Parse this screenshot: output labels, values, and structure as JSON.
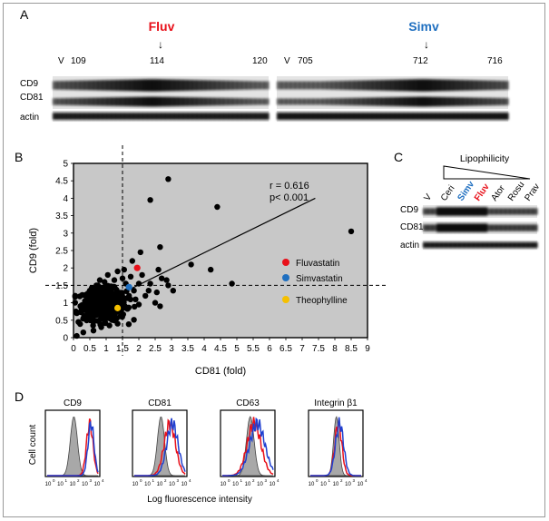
{
  "colors": {
    "red": "#e8101a",
    "blue": "#1f6fc0",
    "yellow": "#f5c000",
    "plot_bg": "#c8c8c8"
  },
  "panelA": {
    "letter": "A",
    "left": {
      "drug": "Fluv",
      "arrow": "↓",
      "lanes": {
        "v": "V",
        "a": "109",
        "b": "114",
        "c": "120"
      }
    },
    "right": {
      "drug": "Simv",
      "arrow": "↓",
      "lanes": {
        "v": "V",
        "a": "705",
        "b": "712",
        "c": "716"
      }
    },
    "rows": [
      "CD9",
      "CD81",
      "actin"
    ]
  },
  "panelB": {
    "letter": "B"
  },
  "panelC": {
    "letter": "C",
    "title": "Lipophilicity",
    "lanes": [
      "V",
      "Ceri",
      "Simv",
      "Fluv",
      "Ator",
      "Rosu",
      "Prav"
    ],
    "rows": [
      "CD9",
      "CD81",
      "actin"
    ]
  },
  "panelD": {
    "letter": "D",
    "titles": [
      "CD9",
      "CD81",
      "CD63",
      "Integrin β1"
    ],
    "ylabel": "Cell count",
    "xlabel": "Log  fluorescence intensity",
    "ticks": [
      "10",
      "10",
      "10",
      "10",
      "10"
    ],
    "exps": [
      "0",
      "1",
      "2",
      "3",
      "4"
    ]
  },
  "chart_data": {
    "type": "scatter",
    "xlabel": "CD81 (fold)",
    "ylabel": "CD9 (fold)",
    "xlim": [
      0,
      9
    ],
    "ylim": [
      0,
      5
    ],
    "xticks": [
      "0",
      "0.5",
      "1",
      "1.5",
      "2",
      "2.5",
      "3",
      "3.5",
      "4",
      "4.5",
      "5",
      "5.5",
      "6",
      "6.5",
      "7",
      "7.5",
      "8",
      "8.5",
      "9"
    ],
    "yticks": [
      "0",
      "0.5",
      "1",
      "1.5",
      "2",
      "2.5",
      "3",
      "3.5",
      "4",
      "4.5",
      "5"
    ],
    "annotation": {
      "r": "r = 0.616",
      "p": "p< 0.001"
    },
    "threshold_x": 1.5,
    "threshold_y": 1.5,
    "regression": {
      "x": [
        0.4,
        7.4
      ],
      "y": [
        0.78,
        4.0
      ]
    },
    "legend": [
      {
        "label": "Fluvastatin",
        "color": "#e8101a"
      },
      {
        "label": "Simvastatin",
        "color": "#1f6fc0"
      },
      {
        "label": "Theophylline",
        "color": "#f5c000"
      }
    ],
    "highlighted": [
      {
        "name": "Fluvastatin",
        "x": 1.95,
        "y": 2.0
      },
      {
        "name": "Simvastatin",
        "x": 1.7,
        "y": 1.45
      },
      {
        "name": "Theophylline",
        "x": 1.35,
        "y": 0.85
      }
    ],
    "outliers": [
      [
        8.5,
        3.05
      ],
      [
        4.4,
        3.75
      ],
      [
        2.9,
        4.55
      ],
      [
        2.35,
        3.95
      ],
      [
        4.85,
        1.55
      ],
      [
        3.6,
        2.1
      ],
      [
        4.2,
        1.95
      ],
      [
        2.65,
        2.6
      ],
      [
        2.05,
        2.45
      ],
      [
        2.6,
        1.95
      ],
      [
        2.35,
        1.55
      ],
      [
        2.7,
        1.7
      ],
      [
        2.85,
        1.65
      ],
      [
        3.05,
        1.35
      ],
      [
        2.55,
        1.3
      ],
      [
        2.9,
        1.5
      ],
      [
        2.2,
        1.2
      ],
      [
        2.0,
        0.95
      ],
      [
        2.5,
        1.0
      ],
      [
        2.65,
        0.9
      ],
      [
        1.8,
        2.2
      ],
      [
        1.55,
        1.95
      ],
      [
        1.75,
        1.75
      ],
      [
        1.35,
        1.9
      ],
      [
        1.05,
        1.8
      ],
      [
        1.5,
        1.7
      ],
      [
        0.95,
        1.6
      ],
      [
        1.25,
        1.65
      ],
      [
        1.6,
        1.55
      ],
      [
        1.2,
        1.45
      ],
      [
        0.8,
        1.45
      ],
      [
        0.5,
        1.35
      ],
      [
        0.1,
        0.7
      ],
      [
        0.15,
        0.45
      ],
      [
        0.1,
        0.05
      ],
      [
        0.3,
        0.15
      ],
      [
        2.1,
        1.8
      ],
      [
        1.85,
        1.35
      ],
      [
        1.45,
        1.25
      ],
      [
        0.7,
        1.5
      ],
      [
        2.3,
        1.35
      ],
      [
        2.0,
        1.55
      ],
      [
        1.9,
        1.1
      ],
      [
        1.7,
        1.2
      ],
      [
        0.35,
        1.05
      ],
      [
        0.25,
        0.85
      ],
      [
        0.6,
        0.35
      ],
      [
        0.85,
        0.3
      ],
      [
        1.1,
        0.35
      ],
      [
        1.35,
        0.4
      ]
    ],
    "cluster": {
      "n": 520,
      "x_mean": 0.95,
      "x_sd": 0.33,
      "y_mean": 0.95,
      "y_sd": 0.22
    }
  }
}
